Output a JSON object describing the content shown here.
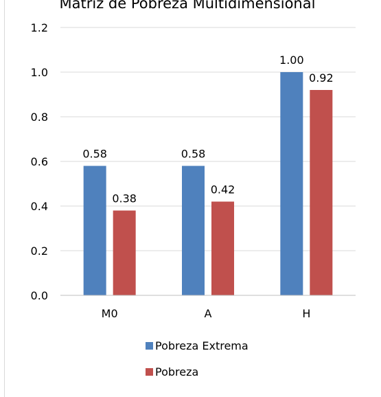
{
  "chart_data": {
    "type": "bar",
    "title": "Matriz de Pobreza Multidimensional",
    "categories": [
      "M0",
      "A",
      "H"
    ],
    "series": [
      {
        "name": "Pobreza Extrema",
        "values": [
          0.58,
          0.58,
          1.0
        ],
        "labels": [
          "0.58",
          "0.58",
          "1.00"
        ],
        "color": "#4f81bd"
      },
      {
        "name": "Pobreza",
        "values": [
          0.38,
          0.42,
          0.92
        ],
        "labels": [
          "0.38",
          "0.42",
          "0.92"
        ],
        "color": "#c0504d"
      }
    ],
    "ylim": [
      0,
      1.2
    ],
    "yticks": [
      "0.0",
      "0.2",
      "0.4",
      "0.6",
      "0.8",
      "1.0",
      "1.2"
    ],
    "grid": true,
    "legend": "bottom",
    "colors": {
      "gridline": "#d9d9d9",
      "axis": "#bfbfbf",
      "border": "#d9d9d9"
    }
  }
}
